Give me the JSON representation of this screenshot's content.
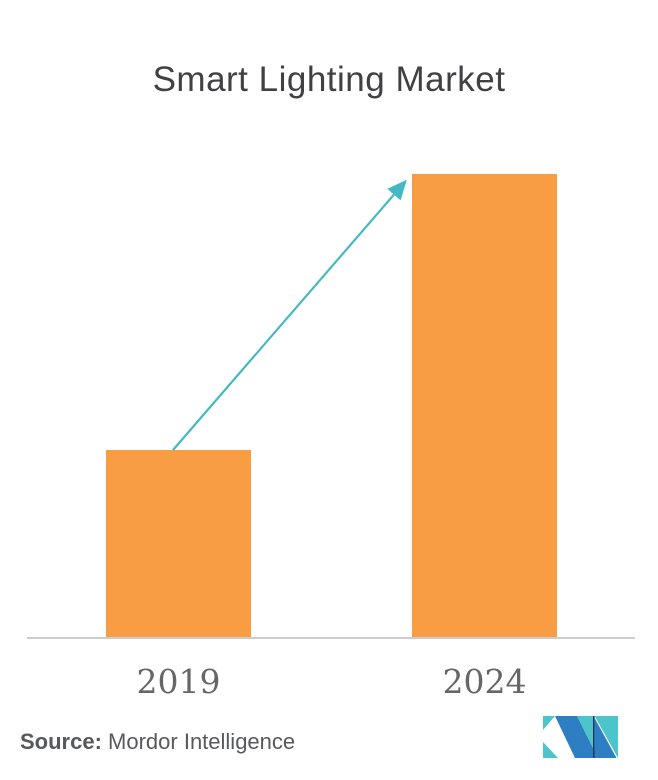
{
  "chart_data": {
    "type": "bar",
    "title": "Smart Lighting Market",
    "categories": [
      "2019",
      "2024"
    ],
    "values": [
      40.5,
      100
    ],
    "values_note": "no numeric axis or data labels shown; heights are relative, 2024 bar is ~2.5x the 2019 bar",
    "xlabel": "",
    "ylabel": "",
    "grid": false,
    "legend": false,
    "y_axis_visible": false,
    "bar_color": "#f99d45",
    "baseline_color": "#cccccc",
    "title_color": "#414042",
    "tick_label_color": "#666666",
    "annotations": [
      {
        "type": "growth-arrow",
        "from": "top of 2019 bar",
        "to": "top-left corner of 2024 bar",
        "color": "#45b9c1"
      }
    ]
  },
  "source": {
    "label": "Source:",
    "text": " Mordor Intelligence",
    "color": "#58595b"
  },
  "logo": {
    "name": "Mordor Intelligence logo",
    "teal": "#4cc4c9",
    "blue": "#2e7ec4",
    "navy": "#1c3a5e"
  }
}
